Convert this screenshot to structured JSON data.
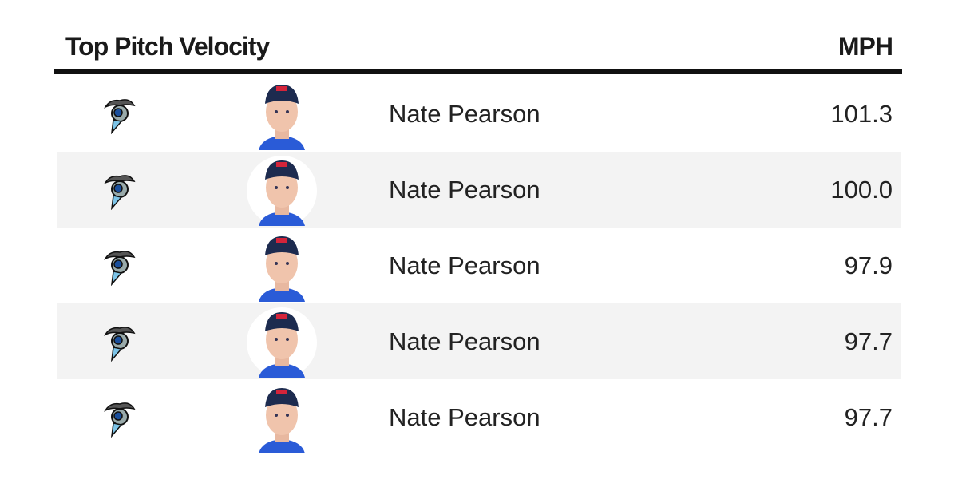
{
  "header": {
    "title": "Top Pitch Velocity",
    "unit": "MPH"
  },
  "table": {
    "rows": [
      {
        "name": "Nate Pearson",
        "value": "101.3"
      },
      {
        "name": "Nate Pearson",
        "value": "100.0"
      },
      {
        "name": "Nate Pearson",
        "value": "97.9"
      },
      {
        "name": "Nate Pearson",
        "value": "97.7"
      },
      {
        "name": "Nate Pearson",
        "value": "97.7"
      }
    ]
  }
}
